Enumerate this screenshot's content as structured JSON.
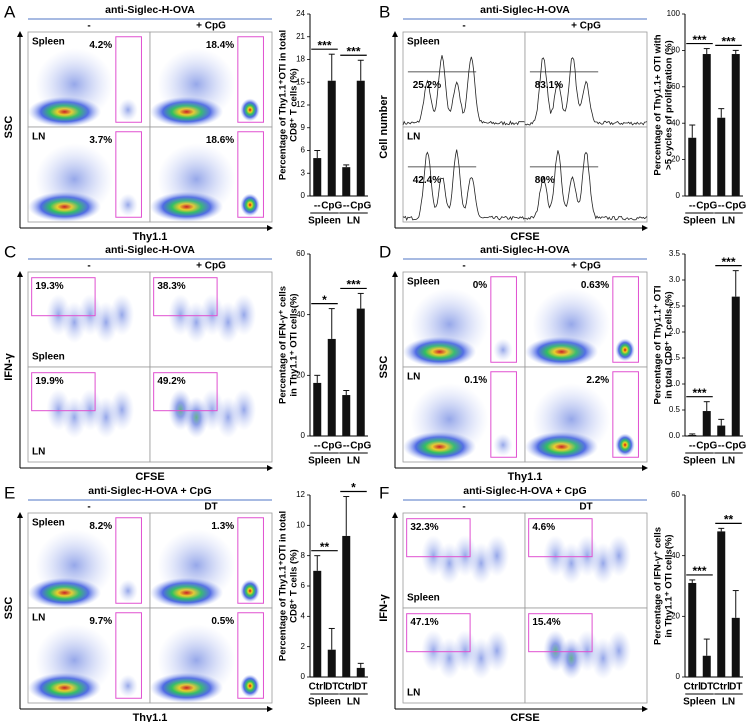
{
  "panels": [
    {
      "letter": "A",
      "header": "anti-Siglec-H-OVA",
      "columns": [
        "-",
        "+ CpG"
      ],
      "rows": [
        "Spleen",
        "LN"
      ],
      "gates": [
        "4.2%",
        "18.4%",
        "3.7%",
        "18.6%"
      ],
      "x_label": "Thy1.1",
      "y_label": "SSC"
    },
    {
      "letter": "B",
      "header": "anti-Siglec-H-OVA",
      "columns": [
        "-",
        "+ CpG"
      ],
      "rows": [
        "Spleen",
        "LN"
      ],
      "gates": [
        "25.2%",
        "83.1%",
        "42.4%",
        "80%"
      ],
      "x_label": "CFSE",
      "y_label": "Cell number"
    },
    {
      "letter": "C",
      "header": "anti-Siglec-H-OVA",
      "columns": [
        "-",
        "+ CpG"
      ],
      "rows": [
        "Spleen",
        "LN"
      ],
      "gates": [
        "19.3%",
        "38.3%",
        "19.9%",
        "49.2%"
      ],
      "x_label": "CFSE",
      "y_label": "IFN-γ"
    },
    {
      "letter": "D",
      "header": "anti-Siglec-H-OVA",
      "columns": [
        "-",
        "+ CpG"
      ],
      "rows": [
        "Spleen",
        "LN"
      ],
      "gates": [
        "0%",
        "0.63%",
        "0.1%",
        "2.2%"
      ],
      "x_label": "Thy1.1",
      "y_label": "SSC"
    },
    {
      "letter": "E",
      "header": "anti-Siglec-H-OVA + CpG",
      "columns": [
        "-",
        "DT"
      ],
      "rows": [
        "Spleen",
        "LN"
      ],
      "gates": [
        "8.2%",
        "1.3%",
        "9.7%",
        "0.5%"
      ],
      "x_label": "Thy1.1",
      "y_label": "SSC"
    },
    {
      "letter": "F",
      "header": "anti-Siglec-H-OVA + CpG",
      "columns": [
        "-",
        "DT"
      ],
      "rows": [
        "Spleen",
        "LN"
      ],
      "gates": [
        "32.3%",
        "4.6%",
        "47.1%",
        "15.4%"
      ],
      "x_label": "CFSE",
      "y_label": "IFN-γ"
    }
  ],
  "chart_data": [
    {
      "type": "bar",
      "ylabel": [
        "Percentage of Thy1.1⁺OTI in total",
        "CD8⁺ T cells (%)"
      ],
      "categories": [
        "--",
        "CpG",
        "--",
        "CpG"
      ],
      "groups": [
        "Spleen",
        "LN"
      ],
      "values": [
        5,
        15.2,
        3.8,
        15.2
      ],
      "errors": [
        1,
        3.5,
        0.3,
        2.7
      ],
      "significance": [
        "***",
        "***"
      ],
      "color": "#111111",
      "ylim": [
        0,
        24
      ],
      "yticks": [
        0,
        3,
        6,
        9,
        12,
        15,
        18,
        21,
        24
      ]
    },
    {
      "type": "bar",
      "ylabel": [
        "Percentage of Thy1.1+ OTI with",
        ">5 cycles of proliferation (%)"
      ],
      "categories": [
        "--",
        "CpG",
        "--",
        "CpG"
      ],
      "groups": [
        "Spleen",
        "LN"
      ],
      "values": [
        32,
        78,
        43,
        78
      ],
      "errors": [
        7,
        3,
        5,
        2
      ],
      "significance": [
        "***",
        "***"
      ],
      "color": "#111111",
      "ylim": [
        0,
        100
      ],
      "yticks": [
        0,
        20,
        40,
        60,
        80,
        100
      ]
    },
    {
      "type": "bar",
      "ylabel": [
        "Percentage of IFN-γ⁺ cells",
        "in Thy1.1⁺ OTI cells(%)"
      ],
      "categories": [
        "--",
        "CpG",
        "--",
        "CpG"
      ],
      "groups": [
        "Spleen",
        "LN"
      ],
      "values": [
        17.5,
        32,
        13.5,
        42
      ],
      "errors": [
        2.5,
        10,
        1.5,
        5
      ],
      "significance": [
        "*",
        "***"
      ],
      "color": "#111111",
      "ylim": [
        0,
        60
      ],
      "yticks": [
        0,
        20,
        40,
        60
      ]
    },
    {
      "type": "bar",
      "ylabel": [
        "Percentage of Thy1.1⁺ OTI",
        "in total CD8⁺ T cells (%)"
      ],
      "categories": [
        "--",
        "CpG",
        "--",
        "CpG"
      ],
      "groups": [
        "Spleen",
        "LN"
      ],
      "values": [
        0.02,
        0.48,
        0.2,
        2.68
      ],
      "errors": [
        0.02,
        0.18,
        0.12,
        0.5
      ],
      "significance": [
        "***",
        "***"
      ],
      "color": "#111111",
      "ylim": [
        0,
        3.5
      ],
      "yticks": [
        {
          "value": 0,
          "label": "0.0"
        },
        0.5,
        {
          "value": 1,
          "label": "1.0"
        },
        1.5,
        {
          "value": 2,
          "label": "2.0"
        },
        2.5,
        {
          "value": 3,
          "label": "3.0"
        },
        3.5
      ]
    },
    {
      "type": "bar",
      "ylabel": [
        "Percentage of Thy1.1⁺OTI in total",
        "CD8⁺ T cells (%)"
      ],
      "categories": [
        "Ctrl",
        "DT",
        "Ctrl",
        "DT"
      ],
      "groups": [
        "Spleen",
        "LN"
      ],
      "values": [
        7,
        1.8,
        9.3,
        0.6
      ],
      "errors": [
        1,
        1.4,
        2.6,
        0.3
      ],
      "significance": [
        "**",
        "*"
      ],
      "color": "#111111",
      "ylim": [
        0,
        12
      ],
      "yticks": [
        0,
        2,
        4,
        6,
        8,
        10,
        12
      ]
    },
    {
      "type": "bar",
      "ylabel": [
        "Percentage of IFN-γ⁺ cells",
        "in Thy1.1⁺ OTI cells(%)"
      ],
      "categories": [
        "Ctrl",
        "DT",
        "Ctrl",
        "DT"
      ],
      "groups": [
        "Spleen",
        "LN"
      ],
      "values": [
        31,
        7,
        48,
        19.5
      ],
      "errors": [
        1,
        5.5,
        1,
        9
      ],
      "significance": [
        "***",
        "**"
      ],
      "color": "#111111",
      "ylim": [
        0,
        60
      ],
      "yticks": [
        0,
        20,
        40,
        60
      ]
    }
  ]
}
